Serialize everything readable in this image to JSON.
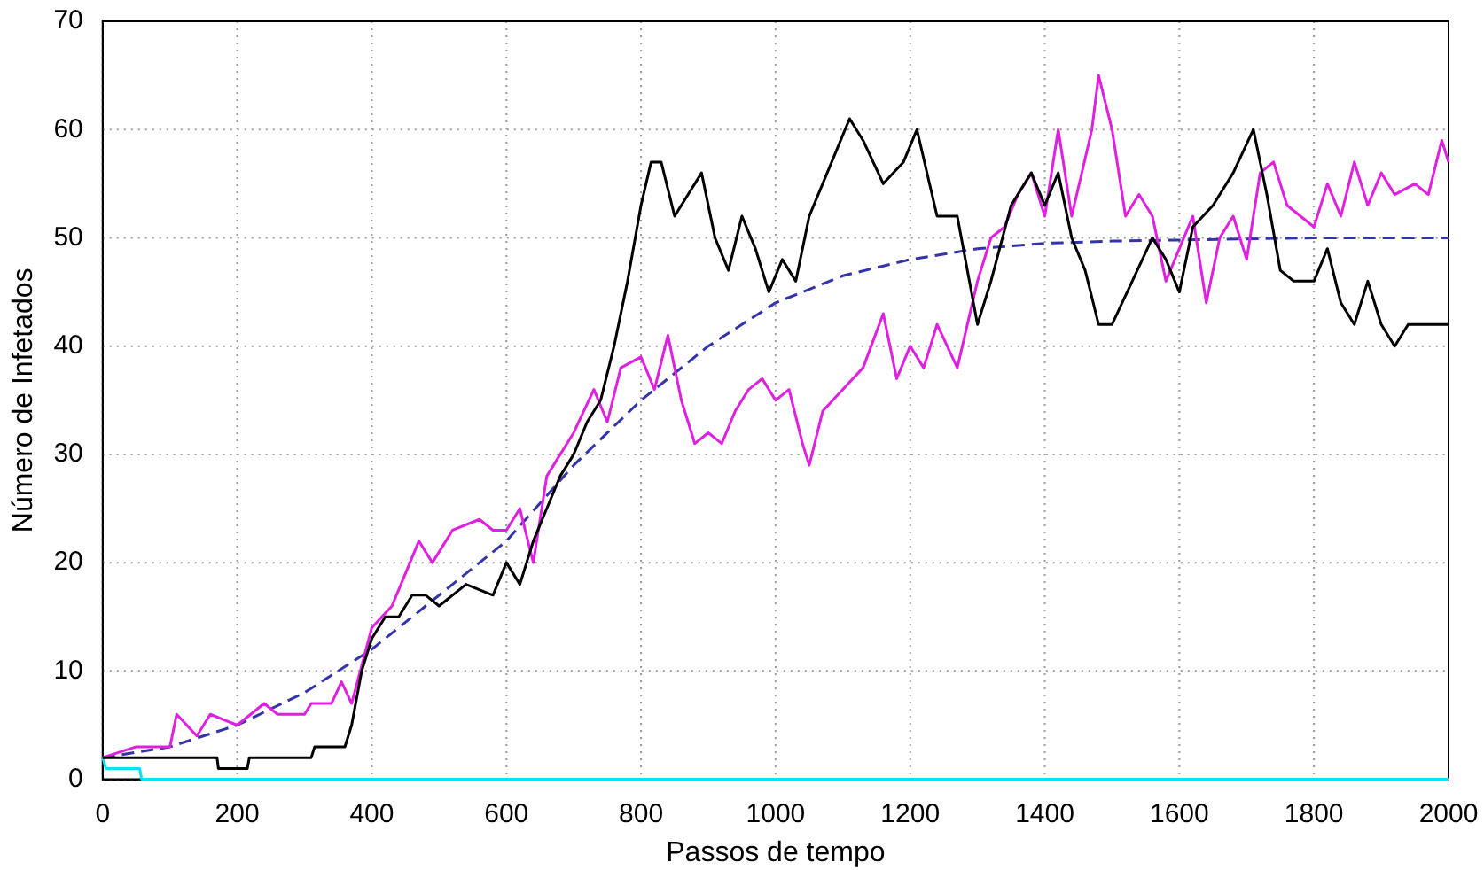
{
  "chart_data": {
    "type": "line",
    "xlabel": "Passos de tempo",
    "ylabel": "Número de Infetados",
    "xlim": [
      0,
      2000
    ],
    "ylim": [
      0,
      70
    ],
    "xticks": [
      0,
      200,
      400,
      600,
      800,
      1000,
      1200,
      1400,
      1600,
      1800,
      2000
    ],
    "yticks": [
      0,
      10,
      20,
      30,
      40,
      50,
      60,
      70
    ],
    "grid": true,
    "legend": false,
    "marker": "none",
    "series": [
      {
        "color": "#000000",
        "line_style": "solid",
        "x": [
          0,
          90,
          170,
          172,
          215,
          218,
          310,
          315,
          360,
          370,
          385,
          400,
          420,
          440,
          460,
          480,
          500,
          540,
          580,
          600,
          620,
          640,
          660,
          680,
          700,
          720,
          740,
          760,
          780,
          800,
          815,
          830,
          850,
          870,
          890,
          910,
          930,
          950,
          970,
          990,
          1010,
          1030,
          1050,
          1070,
          1090,
          1110,
          1130,
          1160,
          1190,
          1210,
          1240,
          1270,
          1300,
          1320,
          1350,
          1380,
          1400,
          1420,
          1440,
          1460,
          1480,
          1500,
          1530,
          1560,
          1580,
          1600,
          1620,
          1650,
          1680,
          1710,
          1730,
          1750,
          1770,
          1800,
          1820,
          1840,
          1860,
          1880,
          1900,
          1920,
          1940,
          2000
        ],
        "values": [
          2,
          2,
          2,
          1,
          1,
          2,
          2,
          3,
          3,
          5,
          10,
          13,
          15,
          15,
          17,
          17,
          16,
          18,
          17,
          20,
          18,
          22,
          25,
          28,
          30,
          33,
          35,
          40,
          46,
          53,
          57,
          57,
          52,
          54,
          56,
          50,
          47,
          52,
          49,
          45,
          48,
          46,
          52,
          55,
          58,
          61,
          59,
          55,
          57,
          60,
          52,
          52,
          42,
          46,
          53,
          56,
          53,
          56,
          50,
          47,
          42,
          42,
          46,
          50,
          48,
          45,
          51,
          53,
          56,
          60,
          54,
          47,
          46,
          46,
          49,
          44,
          42,
          46,
          42,
          40,
          42,
          42
        ]
      },
      {
        "color": "#e020e0",
        "line_style": "solid",
        "x": [
          0,
          50,
          100,
          110,
          140,
          160,
          200,
          240,
          260,
          300,
          310,
          340,
          355,
          370,
          400,
          430,
          450,
          470,
          490,
          520,
          560,
          580,
          600,
          620,
          640,
          660,
          680,
          700,
          730,
          750,
          770,
          800,
          820,
          840,
          860,
          880,
          900,
          920,
          940,
          960,
          980,
          1000,
          1020,
          1040,
          1050,
          1070,
          1100,
          1130,
          1160,
          1180,
          1200,
          1220,
          1240,
          1270,
          1300,
          1320,
          1340,
          1360,
          1380,
          1400,
          1420,
          1440,
          1470,
          1480,
          1500,
          1520,
          1540,
          1560,
          1580,
          1600,
          1620,
          1640,
          1660,
          1680,
          1700,
          1720,
          1740,
          1760,
          1780,
          1800,
          1820,
          1840,
          1860,
          1880,
          1900,
          1920,
          1950,
          1970,
          1990,
          2000
        ],
        "values": [
          2,
          3,
          3,
          6,
          4,
          6,
          5,
          7,
          6,
          6,
          7,
          7,
          9,
          7,
          14,
          16,
          19,
          22,
          20,
          23,
          24,
          23,
          23,
          25,
          20,
          28,
          30,
          32,
          36,
          33,
          38,
          39,
          36,
          41,
          35,
          31,
          32,
          31,
          34,
          36,
          37,
          35,
          36,
          31,
          29,
          34,
          36,
          38,
          43,
          37,
          40,
          38,
          42,
          38,
          46,
          50,
          51,
          54,
          56,
          52,
          60,
          52,
          60,
          65,
          60,
          52,
          54,
          52,
          46,
          49,
          52,
          44,
          50,
          52,
          48,
          56,
          57,
          53,
          52,
          51,
          55,
          52,
          57,
          53,
          56,
          54,
          55,
          54,
          59,
          57
        ]
      },
      {
        "color": "#3333aa",
        "line_style": "dashed",
        "x": [
          0,
          100,
          200,
          300,
          400,
          500,
          600,
          700,
          800,
          900,
          1000,
          1100,
          1200,
          1300,
          1400,
          1500,
          1600,
          1800,
          2000
        ],
        "values": [
          2,
          3,
          5,
          8,
          12,
          17,
          22,
          29,
          35,
          40,
          44,
          46.5,
          48,
          49,
          49.5,
          49.7,
          49.8,
          50,
          50
        ]
      },
      {
        "color": "#00e5ee",
        "line_style": "solid",
        "x": [
          0,
          5,
          55,
          58,
          2000
        ],
        "values": [
          2,
          1,
          1,
          0,
          0
        ]
      }
    ]
  }
}
